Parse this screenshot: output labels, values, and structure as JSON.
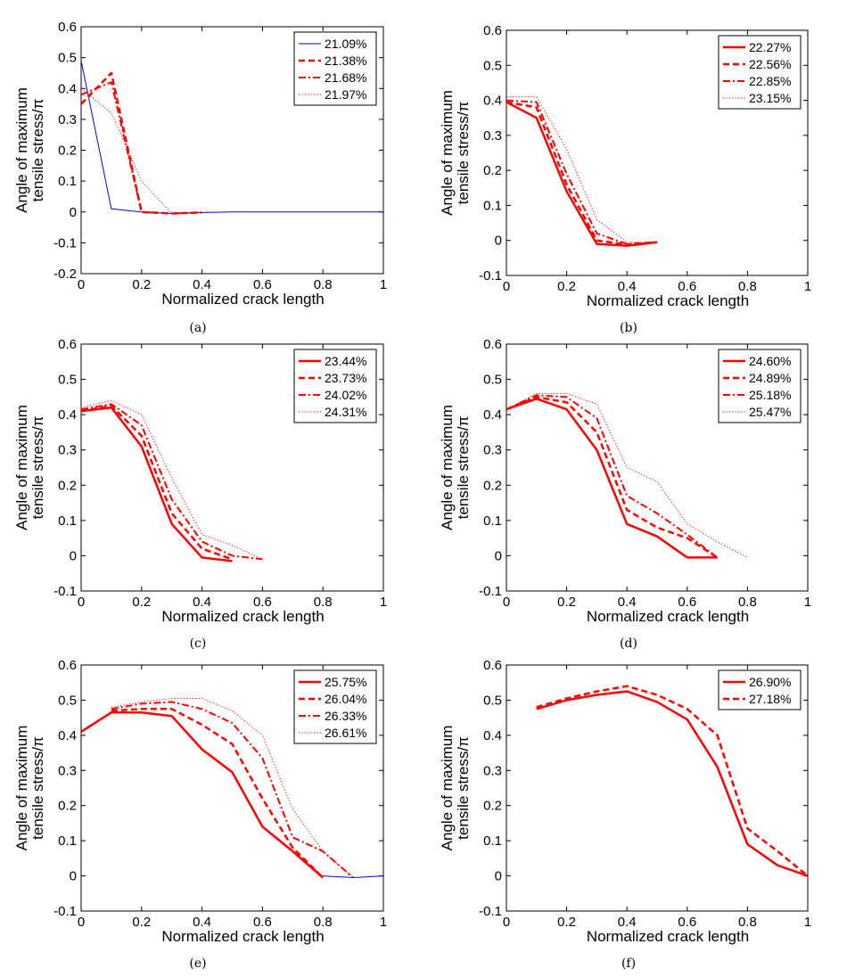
{
  "chart_data": [
    {
      "type": "line",
      "caption": "(a)",
      "xlabel": "Normalized crack length",
      "ylabel": [
        "Angle of maximum",
        "tensile stress/π"
      ],
      "xlim": [
        0,
        1
      ],
      "ylim": [
        -0.2,
        0.6
      ],
      "xticks": [
        "0",
        "0.2",
        "0.4",
        "0.6",
        "0.8",
        "1"
      ],
      "yticks": [
        "-0.2",
        "-0.1",
        "0",
        "0.1",
        "0.2",
        "0.3",
        "0.4",
        "0.5",
        "0.6"
      ],
      "legend_position": "top-right",
      "series": [
        {
          "name": "21.09%",
          "color": "#0000ff",
          "style": "solid",
          "width": 1,
          "x": [
            0,
            0.1,
            0.2,
            0.3,
            0.4,
            0.5,
            0.6,
            0.7,
            0.8,
            0.9,
            1.0
          ],
          "y": [
            0.49,
            0.01,
            0.0,
            -0.005,
            -0.002,
            0.0,
            0.0,
            0.0,
            0.0,
            0.0,
            0.0
          ]
        },
        {
          "name": "21.38%",
          "color": "#ff0000",
          "style": "dashed",
          "width": 2.5,
          "x": [
            0,
            0.1,
            0.2,
            0.3,
            0.4
          ],
          "y": [
            0.35,
            0.45,
            0.0,
            -0.005,
            -0.002
          ]
        },
        {
          "name": "21.68%",
          "color": "#ff0000",
          "style": "dashdot",
          "width": 2,
          "x": [
            0,
            0.1,
            0.2,
            0.3,
            0.4
          ],
          "y": [
            0.38,
            0.42,
            0.0,
            -0.005,
            -0.002
          ]
        },
        {
          "name": "21.97%",
          "color": "#ff0000",
          "style": "dotted",
          "width": 1,
          "x": [
            0,
            0.1,
            0.2,
            0.3,
            0.4
          ],
          "y": [
            0.4,
            0.32,
            0.1,
            -0.005,
            -0.002
          ]
        }
      ]
    },
    {
      "type": "line",
      "caption": "(b)",
      "xlabel": "Normalized crack length",
      "ylabel": [
        "Angle of maximum",
        "tensile stress/π"
      ],
      "xlim": [
        0,
        1
      ],
      "ylim": [
        -0.1,
        0.6
      ],
      "xticks": [
        "0",
        "0.2",
        "0.4",
        "0.6",
        "0.8",
        "1"
      ],
      "yticks": [
        "-0.1",
        "0",
        "0.1",
        "0.2",
        "0.3",
        "0.4",
        "0.5",
        "0.6"
      ],
      "legend_position": "top-right",
      "series": [
        {
          "name": "22.27%",
          "color": "#ff0000",
          "style": "solid",
          "width": 2.5,
          "x": [
            0,
            0.1,
            0.2,
            0.3,
            0.4,
            0.5
          ],
          "y": [
            0.395,
            0.35,
            0.14,
            -0.01,
            -0.015,
            -0.005
          ]
        },
        {
          "name": "22.56%",
          "color": "#ff0000",
          "style": "dashed",
          "width": 2.5,
          "x": [
            0,
            0.1,
            0.2,
            0.3,
            0.4,
            0.5
          ],
          "y": [
            0.395,
            0.38,
            0.16,
            0.0,
            -0.012,
            -0.005
          ]
        },
        {
          "name": "22.85%",
          "color": "#ff0000",
          "style": "dashdot",
          "width": 2,
          "x": [
            0,
            0.1,
            0.2,
            0.3,
            0.4,
            0.5
          ],
          "y": [
            0.4,
            0.395,
            0.19,
            0.02,
            -0.01,
            -0.005
          ]
        },
        {
          "name": "23.15%",
          "color": "#ff0000",
          "style": "dotted",
          "width": 1,
          "x": [
            0,
            0.1,
            0.2,
            0.3,
            0.4,
            0.5
          ],
          "y": [
            0.41,
            0.41,
            0.26,
            0.06,
            -0.005,
            -0.005
          ]
        }
      ]
    },
    {
      "type": "line",
      "caption": "(c)",
      "xlabel": "Normalized crack length",
      "ylabel": [
        "Angle of maximum",
        "tensile stress/π"
      ],
      "xlim": [
        0,
        1
      ],
      "ylim": [
        -0.1,
        0.6
      ],
      "xticks": [
        "0",
        "0.2",
        "0.4",
        "0.6",
        "0.8",
        "1"
      ],
      "yticks": [
        "-0.1",
        "0",
        "0.1",
        "0.2",
        "0.3",
        "0.4",
        "0.5",
        "0.6"
      ],
      "legend_position": "top-right",
      "series": [
        {
          "name": "23.44%",
          "color": "#ff0000",
          "style": "solid",
          "width": 2.5,
          "x": [
            0,
            0.1,
            0.2,
            0.3,
            0.4,
            0.5
          ],
          "y": [
            0.41,
            0.42,
            0.31,
            0.09,
            -0.005,
            -0.015
          ]
        },
        {
          "name": "23.73%",
          "color": "#ff0000",
          "style": "dashed",
          "width": 2.5,
          "x": [
            0,
            0.1,
            0.2,
            0.3,
            0.4,
            0.5
          ],
          "y": [
            0.41,
            0.425,
            0.34,
            0.12,
            0.02,
            -0.01
          ]
        },
        {
          "name": "24.02%",
          "color": "#ff0000",
          "style": "dashdot",
          "width": 2,
          "x": [
            0,
            0.1,
            0.2,
            0.3,
            0.4,
            0.5,
            0.6
          ],
          "y": [
            0.415,
            0.43,
            0.37,
            0.16,
            0.04,
            0.0,
            -0.01
          ]
        },
        {
          "name": "24.31%",
          "color": "#ff0000",
          "style": "dotted",
          "width": 1,
          "x": [
            0,
            0.1,
            0.2,
            0.3,
            0.4,
            0.5,
            0.6
          ],
          "y": [
            0.42,
            0.44,
            0.4,
            0.22,
            0.06,
            0.03,
            -0.01
          ]
        }
      ]
    },
    {
      "type": "line",
      "caption": "(d)",
      "xlabel": "Normalized crack length",
      "ylabel": [
        "Angle of maximum",
        "tensile stress/π"
      ],
      "xlim": [
        0,
        1
      ],
      "ylim": [
        -0.1,
        0.6
      ],
      "xticks": [
        "0",
        "0.2",
        "0.4",
        "0.6",
        "0.8",
        "1"
      ],
      "yticks": [
        "-0.1",
        "0",
        "0.1",
        "0.2",
        "0.3",
        "0.4",
        "0.5",
        "0.6"
      ],
      "legend_position": "top-right",
      "series": [
        {
          "name": "24.60%",
          "color": "#ff0000",
          "style": "solid",
          "width": 2.5,
          "x": [
            0,
            0.1,
            0.2,
            0.3,
            0.4,
            0.5,
            0.6,
            0.7
          ],
          "y": [
            0.415,
            0.445,
            0.415,
            0.3,
            0.09,
            0.055,
            -0.005,
            -0.005
          ]
        },
        {
          "name": "24.89%",
          "color": "#ff0000",
          "style": "dashed",
          "width": 2.5,
          "x": [
            0,
            0.1,
            0.2,
            0.3,
            0.4,
            0.5,
            0.6,
            0.7
          ],
          "y": [
            0.415,
            0.45,
            0.435,
            0.35,
            0.13,
            0.08,
            0.05,
            -0.005
          ]
        },
        {
          "name": "25.18%",
          "color": "#ff0000",
          "style": "dashdot",
          "width": 2,
          "x": [
            0,
            0.1,
            0.2,
            0.3,
            0.4,
            0.5,
            0.6,
            0.7
          ],
          "y": [
            0.415,
            0.455,
            0.45,
            0.39,
            0.17,
            0.12,
            0.06,
            -0.005
          ]
        },
        {
          "name": "25.47%",
          "color": "#ff0000",
          "style": "dotted",
          "width": 1,
          "x": [
            0,
            0.1,
            0.2,
            0.3,
            0.4,
            0.5,
            0.6,
            0.7,
            0.8
          ],
          "y": [
            0.415,
            0.46,
            0.46,
            0.43,
            0.25,
            0.21,
            0.09,
            0.04,
            -0.005
          ]
        }
      ]
    },
    {
      "type": "line",
      "caption": "(e)",
      "xlabel": "Normalized crack length",
      "ylabel": [
        "Angle of maximum",
        "tensile stress/π"
      ],
      "xlim": [
        0,
        1
      ],
      "ylim": [
        -0.1,
        0.6
      ],
      "xticks": [
        "0",
        "0.2",
        "0.4",
        "0.6",
        "0.8",
        "1"
      ],
      "yticks": [
        "-0.1",
        "0",
        "0.1",
        "0.2",
        "0.3",
        "0.4",
        "0.5",
        "0.6"
      ],
      "legend_position": "top-right",
      "series": [
        {
          "name": "25.75%",
          "color": "#ff0000",
          "style": "solid",
          "width": 2.5,
          "x": [
            0,
            0.1,
            0.2,
            0.3,
            0.4,
            0.5,
            0.6,
            0.7,
            0.8
          ],
          "y": [
            0.41,
            0.465,
            0.465,
            0.455,
            0.36,
            0.295,
            0.14,
            0.07,
            -0.005
          ]
        },
        {
          "name": "26.04%",
          "color": "#ff0000",
          "style": "dashed",
          "width": 2.5,
          "x": [
            0.1,
            0.2,
            0.3,
            0.4,
            0.5,
            0.6,
            0.7,
            0.8
          ],
          "y": [
            0.47,
            0.475,
            0.475,
            0.43,
            0.375,
            0.22,
            0.08,
            -0.005
          ]
        },
        {
          "name": "26.33%",
          "color": "#ff0000",
          "style": "dashdot",
          "width": 2,
          "x": [
            0.1,
            0.2,
            0.3,
            0.4,
            0.5,
            0.6,
            0.7,
            0.8,
            0.9
          ],
          "y": [
            0.475,
            0.49,
            0.495,
            0.475,
            0.435,
            0.335,
            0.11,
            0.07,
            -0.005
          ]
        },
        {
          "name": "26.61%",
          "color": "#ff0000",
          "style": "dotted",
          "width": 1,
          "x": [
            0.1,
            0.2,
            0.3,
            0.4,
            0.5,
            0.6,
            0.7,
            0.8,
            0.9
          ],
          "y": [
            0.48,
            0.495,
            0.505,
            0.505,
            0.47,
            0.4,
            0.19,
            0.07,
            -0.005
          ]
        },
        {
          "name": "",
          "color": "#0000ff",
          "style": "solid",
          "width": 1,
          "x": [
            0.8,
            0.9,
            1.0
          ],
          "y": [
            0.0,
            -0.005,
            0.0
          ]
        }
      ]
    },
    {
      "type": "line",
      "caption": "(f)",
      "xlabel": "Normalized crack length",
      "ylabel": [
        "Angle of maximum",
        "tensile stress/π"
      ],
      "xlim": [
        0,
        1
      ],
      "ylim": [
        -0.1,
        0.6
      ],
      "xticks": [
        "0",
        "0.2",
        "0.4",
        "0.6",
        "0.8",
        "1"
      ],
      "yticks": [
        "-0.1",
        "0",
        "0.1",
        "0.2",
        "0.3",
        "0.4",
        "0.5",
        "0.6"
      ],
      "legend_position": "top-right",
      "series": [
        {
          "name": "26.90%",
          "color": "#ff0000",
          "style": "solid",
          "width": 2.5,
          "x": [
            0.1,
            0.2,
            0.3,
            0.4,
            0.5,
            0.6,
            0.7,
            0.8,
            0.9,
            1.0
          ],
          "y": [
            0.475,
            0.5,
            0.515,
            0.525,
            0.495,
            0.445,
            0.31,
            0.09,
            0.03,
            0.0
          ]
        },
        {
          "name": "27.18%",
          "color": "#ff0000",
          "style": "dashed",
          "width": 2.5,
          "x": [
            0.1,
            0.2,
            0.3,
            0.4,
            0.5,
            0.6,
            0.7,
            0.8,
            0.9,
            1.0
          ],
          "y": [
            0.48,
            0.505,
            0.525,
            0.54,
            0.515,
            0.475,
            0.4,
            0.135,
            0.07,
            0.0
          ]
        }
      ]
    }
  ]
}
